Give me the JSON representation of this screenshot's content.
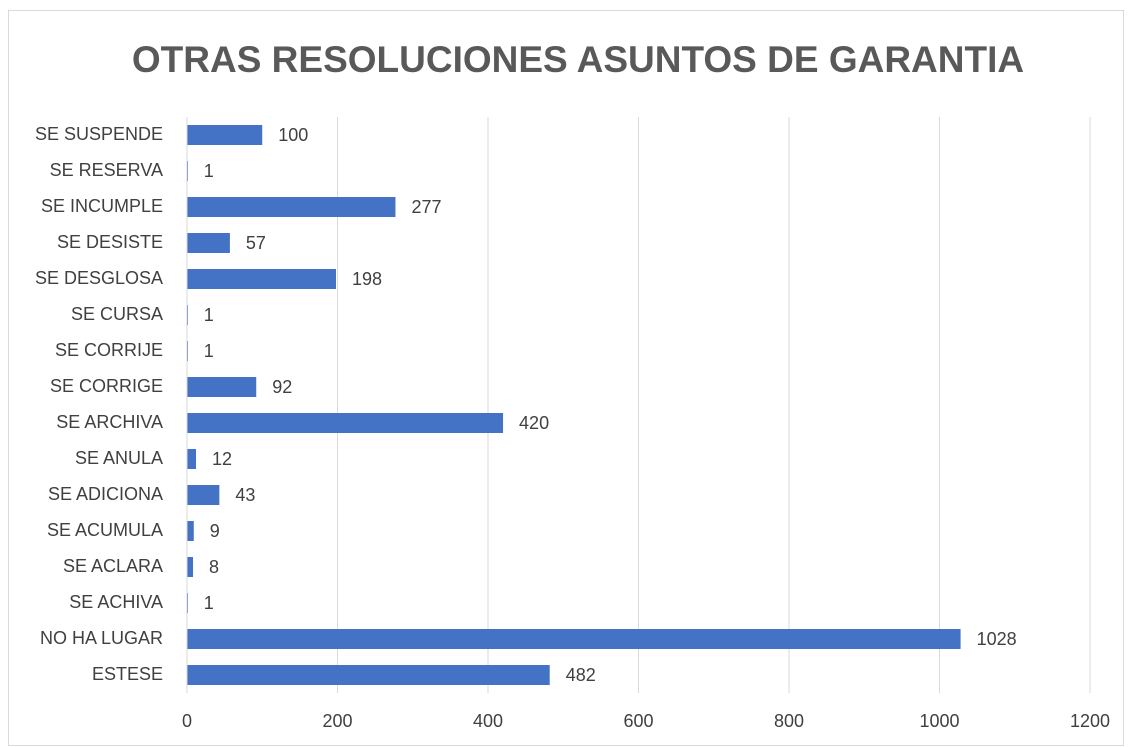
{
  "chart_data": {
    "type": "bar",
    "orientation": "horizontal",
    "title": "OTRAS RESOLUCIONES ASUNTOS DE GARANTIA",
    "categories": [
      "ESTESE",
      "NO HA LUGAR",
      "SE ACHIVA",
      "SE ACLARA",
      "SE ACUMULA",
      "SE ADICIONA",
      "SE ANULA",
      "SE ARCHIVA",
      "SE CORRIGE",
      "SE CORRIJE",
      "SE CURSA",
      "SE DESGLOSA",
      "SE DESISTE",
      "SE INCUMPLE",
      "SE RESERVA",
      "SE SUSPENDE"
    ],
    "values": [
      482,
      1028,
      1,
      8,
      9,
      43,
      12,
      420,
      92,
      1,
      1,
      198,
      57,
      277,
      1,
      100
    ],
    "color": "#4472c4",
    "xlim": [
      0,
      1200
    ],
    "xticks": [
      0,
      200,
      400,
      600,
      800,
      1000,
      1200
    ],
    "grid": true
  }
}
